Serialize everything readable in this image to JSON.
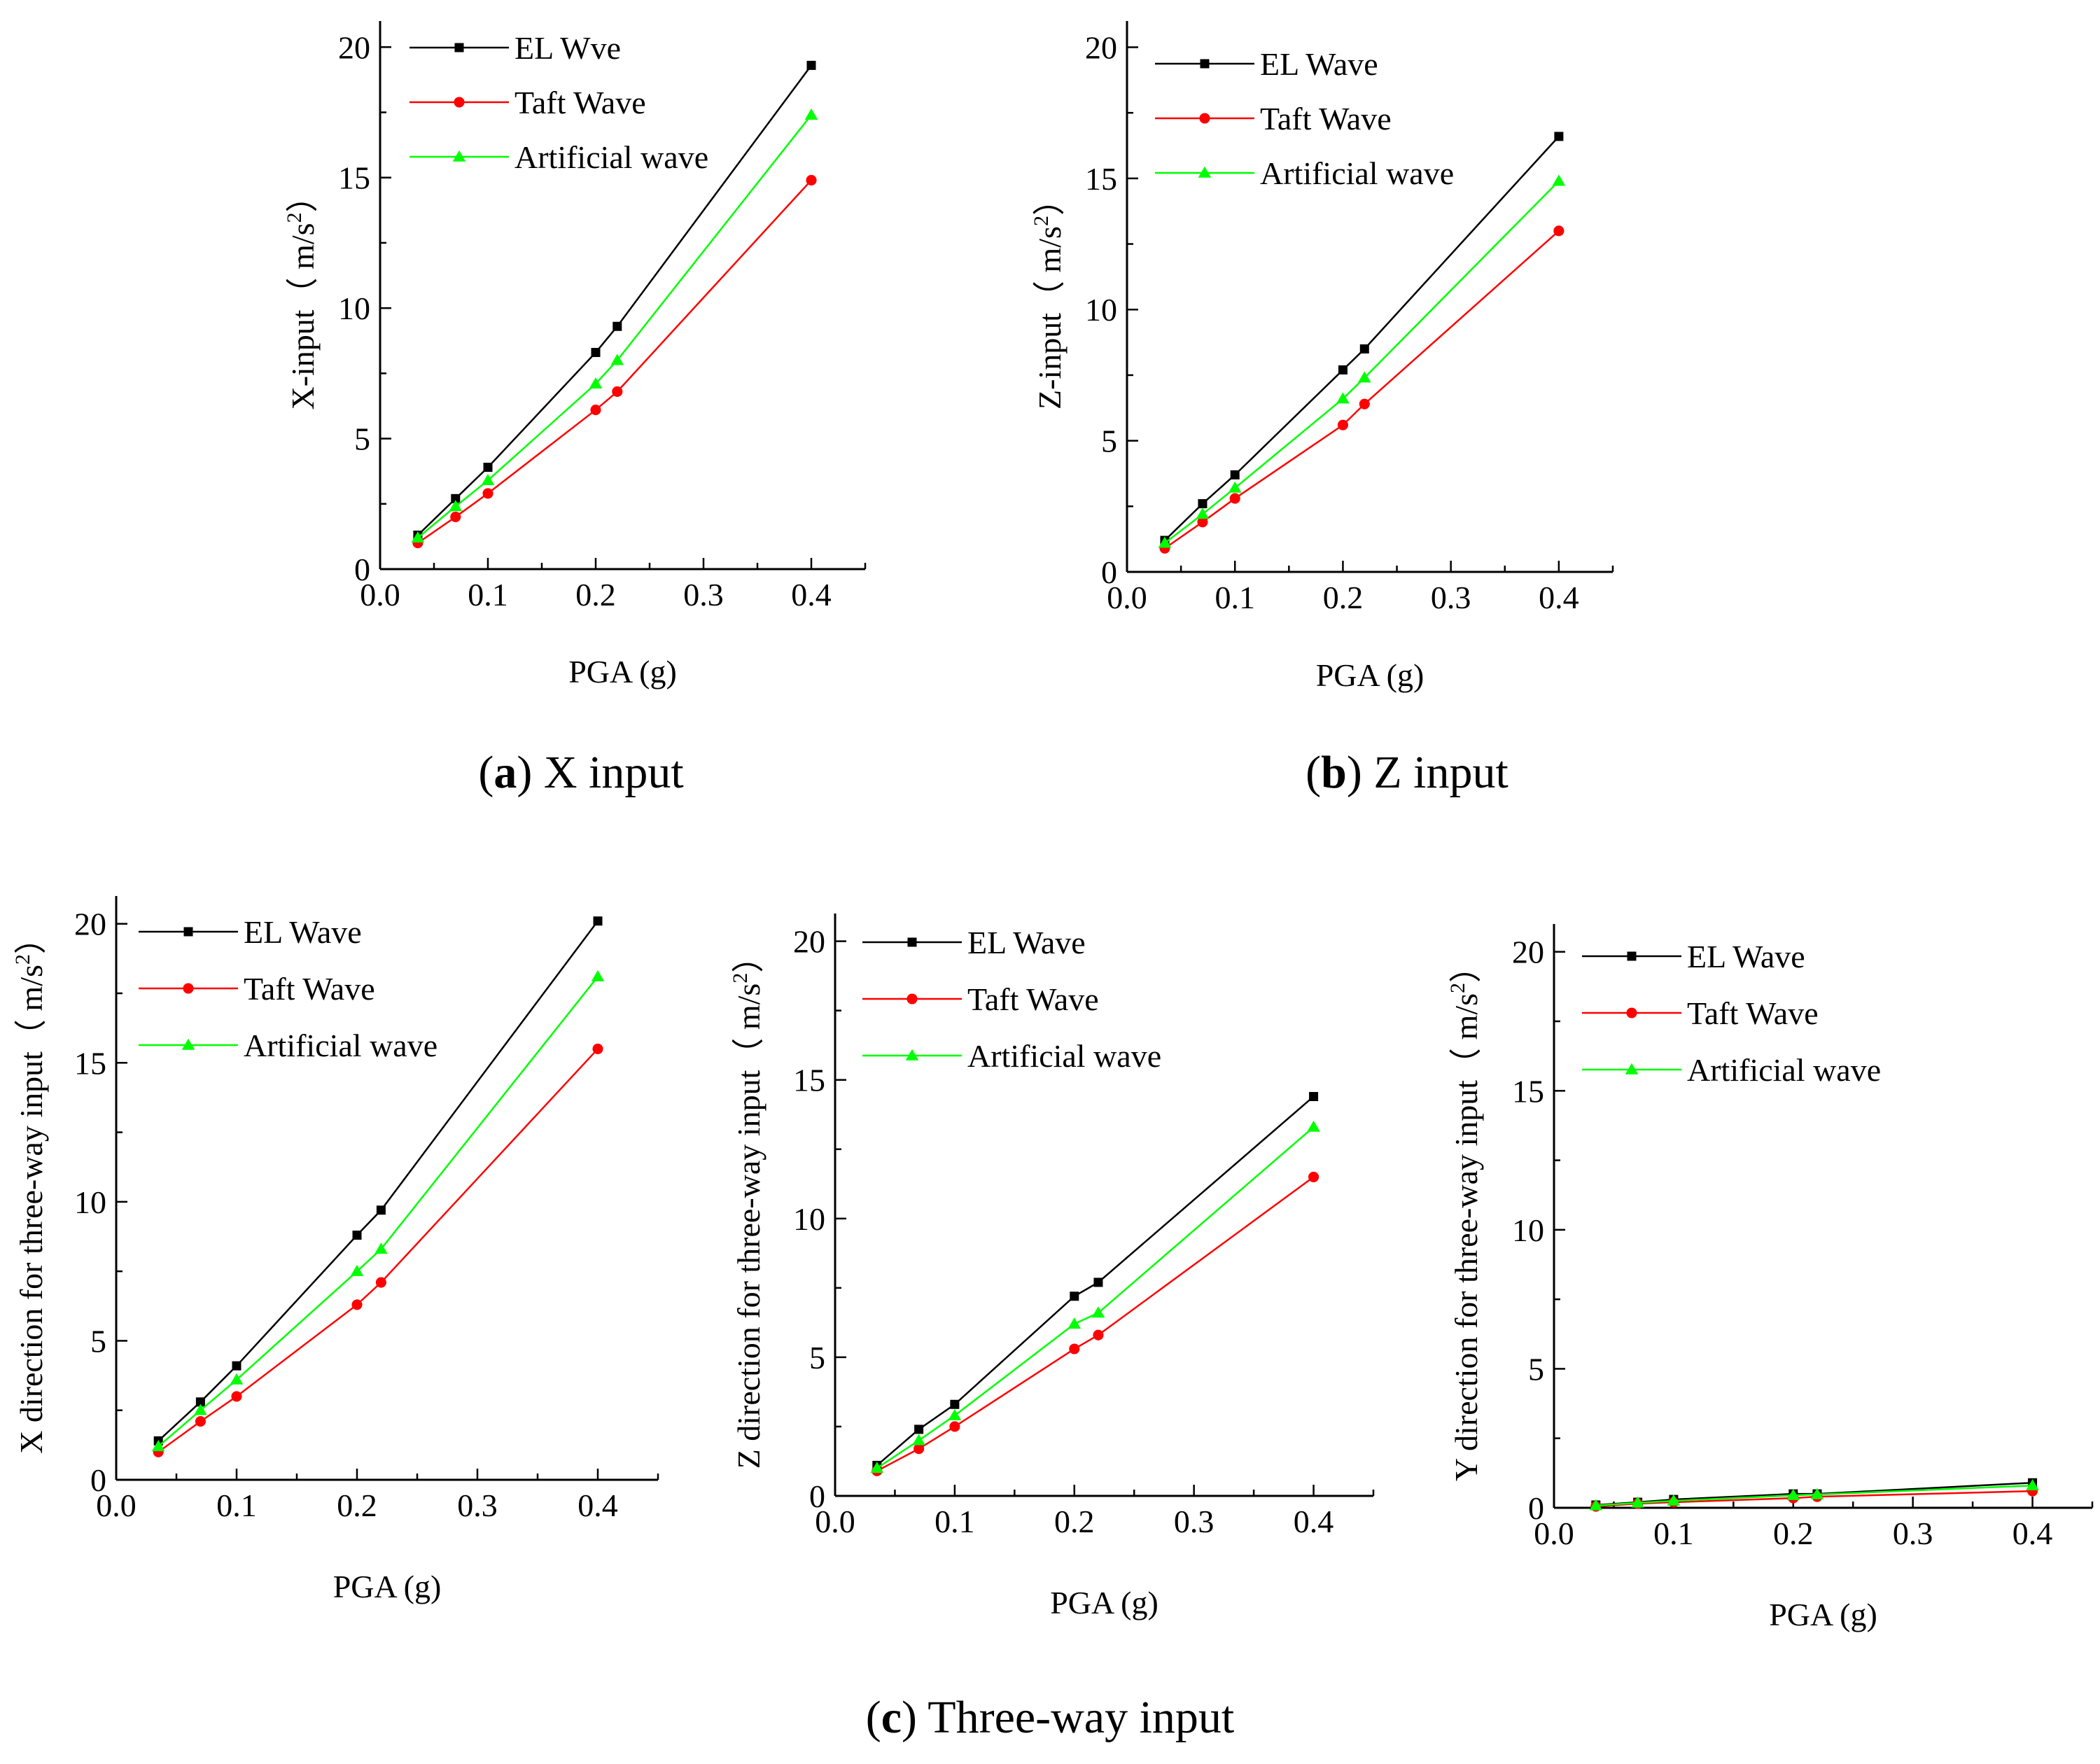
{
  "figure": {
    "captions": [
      {
        "letter": "a",
        "text": " X input"
      },
      {
        "letter": "b",
        "text": " Z input"
      },
      {
        "letter": "c",
        "text": " Three-way input"
      }
    ],
    "colors": {
      "el": "#000000",
      "taft": "#ff0000",
      "artificial": "#00ff00",
      "axis": "#000000"
    }
  },
  "chart_data": [
    {
      "id": "a",
      "type": "line",
      "title": "",
      "xlabel": "PGA (g)",
      "ylabel_prefix": "X-input（ m/s",
      "ylabel_sup": "2",
      "ylabel_suffix": "）",
      "xlim": [
        0.0,
        0.45
      ],
      "ylim": [
        0,
        21
      ],
      "xticks": [
        0.0,
        0.1,
        0.2,
        0.3,
        0.4
      ],
      "xtick_labels": [
        "0.0",
        "0.1",
        "0.2",
        "0.3",
        "0.4"
      ],
      "yticks": [
        0,
        5,
        10,
        15,
        20
      ],
      "ytick_labels": [
        "0",
        "5",
        "10",
        "15",
        "20"
      ],
      "legend_position": "top-left",
      "x": [
        0.035,
        0.07,
        0.1,
        0.2,
        0.22,
        0.4
      ],
      "series": [
        {
          "name": "EL Wve",
          "key": "el",
          "marker": "square",
          "values": [
            1.3,
            2.7,
            3.9,
            8.3,
            9.3,
            19.3
          ]
        },
        {
          "name": "Taft Wave",
          "key": "taft",
          "marker": "circle",
          "values": [
            1.0,
            2.0,
            2.9,
            6.1,
            6.8,
            14.9
          ]
        },
        {
          "name": "Artificial wave",
          "key": "artificial",
          "marker": "triangle",
          "values": [
            1.2,
            2.4,
            3.4,
            7.1,
            8.0,
            17.4
          ]
        }
      ]
    },
    {
      "id": "b",
      "type": "line",
      "title": "",
      "xlabel": "PGA (g)",
      "ylabel_prefix": "Z-input（ m/s",
      "ylabel_sup": "2",
      "ylabel_suffix": "）",
      "xlim": [
        0.0,
        0.45
      ],
      "ylim": [
        0,
        21
      ],
      "xticks": [
        0.0,
        0.1,
        0.2,
        0.3,
        0.4
      ],
      "xtick_labels": [
        "0.0",
        "0.1",
        "0.2",
        "0.3",
        "0.4"
      ],
      "yticks": [
        0,
        5,
        10,
        15,
        20
      ],
      "ytick_labels": [
        "0",
        "5",
        "10",
        "15",
        "20"
      ],
      "legend_position": "top-left",
      "x": [
        0.035,
        0.07,
        0.1,
        0.2,
        0.22,
        0.4
      ],
      "series": [
        {
          "name": "EL Wave",
          "key": "el",
          "marker": "square",
          "values": [
            1.2,
            2.6,
            3.7,
            7.7,
            8.5,
            16.6
          ]
        },
        {
          "name": "Taft Wave",
          "key": "taft",
          "marker": "circle",
          "values": [
            0.9,
            1.9,
            2.8,
            5.6,
            6.4,
            13.0
          ]
        },
        {
          "name": "Artificial wave",
          "key": "artificial",
          "marker": "triangle",
          "values": [
            1.1,
            2.2,
            3.2,
            6.6,
            7.4,
            14.9
          ]
        }
      ]
    },
    {
      "id": "c1",
      "type": "line",
      "title": "",
      "xlabel": "PGA (g)",
      "ylabel_prefix": "X direction for three-way input（ m/s",
      "ylabel_sup": "2",
      "ylabel_suffix": "）",
      "xlim": [
        0.0,
        0.45
      ],
      "ylim": [
        0,
        21
      ],
      "xticks": [
        0.0,
        0.1,
        0.2,
        0.3,
        0.4
      ],
      "xtick_labels": [
        "0.0",
        "0.1",
        "0.2",
        "0.3",
        "0.4"
      ],
      "yticks": [
        0,
        5,
        10,
        15,
        20
      ],
      "ytick_labels": [
        "0",
        "5",
        "10",
        "15",
        "20"
      ],
      "legend_position": "top-left",
      "x": [
        0.035,
        0.07,
        0.1,
        0.2,
        0.22,
        0.4
      ],
      "series": [
        {
          "name": "EL Wave",
          "key": "el",
          "marker": "square",
          "values": [
            1.4,
            2.8,
            4.1,
            8.8,
            9.7,
            20.1
          ]
        },
        {
          "name": "Taft Wave",
          "key": "taft",
          "marker": "circle",
          "values": [
            1.0,
            2.1,
            3.0,
            6.3,
            7.1,
            15.5
          ]
        },
        {
          "name": "Artificial wave",
          "key": "artificial",
          "marker": "triangle",
          "values": [
            1.2,
            2.5,
            3.6,
            7.5,
            8.3,
            18.1
          ]
        }
      ]
    },
    {
      "id": "c2",
      "type": "line",
      "title": "",
      "xlabel": "PGA (g)",
      "ylabel_prefix": "Z direction for three-way input（ m/s",
      "ylabel_sup": "2",
      "ylabel_suffix": "）",
      "xlim": [
        0.0,
        0.45
      ],
      "ylim": [
        0,
        21
      ],
      "xticks": [
        0.0,
        0.1,
        0.2,
        0.3,
        0.4
      ],
      "xtick_labels": [
        "0.0",
        "0.1",
        "0.2",
        "0.3",
        "0.4"
      ],
      "yticks": [
        0,
        5,
        10,
        15,
        20
      ],
      "ytick_labels": [
        "0",
        "5",
        "10",
        "15",
        "20"
      ],
      "legend_position": "top-left",
      "x": [
        0.035,
        0.07,
        0.1,
        0.2,
        0.22,
        0.4
      ],
      "series": [
        {
          "name": "EL Wave",
          "key": "el",
          "marker": "square",
          "values": [
            1.1,
            2.4,
            3.3,
            7.2,
            7.7,
            14.4
          ]
        },
        {
          "name": "Taft Wave",
          "key": "taft",
          "marker": "circle",
          "values": [
            0.9,
            1.7,
            2.5,
            5.3,
            5.8,
            11.5
          ]
        },
        {
          "name": "Artificial wave",
          "key": "artificial",
          "marker": "triangle",
          "values": [
            1.0,
            2.0,
            2.9,
            6.2,
            6.6,
            13.3
          ]
        }
      ]
    },
    {
      "id": "c3",
      "type": "line",
      "title": "",
      "xlabel": "PGA (g)",
      "ylabel_prefix": "Y direction for three-way input（ m/s",
      "ylabel_sup": "2",
      "ylabel_suffix": "）",
      "xlim": [
        0.0,
        0.45
      ],
      "ylim": [
        0,
        21
      ],
      "xticks": [
        0.0,
        0.1,
        0.2,
        0.3,
        0.4
      ],
      "xtick_labels": [
        "0.0",
        "0.1",
        "0.2",
        "0.3",
        "0.4"
      ],
      "yticks": [
        0,
        5,
        10,
        15,
        20
      ],
      "ytick_labels": [
        "0",
        "5",
        "10",
        "15",
        "20"
      ],
      "legend_position": "top-left",
      "x": [
        0.035,
        0.07,
        0.1,
        0.2,
        0.22,
        0.4
      ],
      "series": [
        {
          "name": "EL Wave",
          "key": "el",
          "marker": "square",
          "values": [
            0.1,
            0.2,
            0.3,
            0.5,
            0.5,
            0.9
          ]
        },
        {
          "name": "Taft Wave",
          "key": "taft",
          "marker": "circle",
          "values": [
            0.05,
            0.15,
            0.2,
            0.35,
            0.4,
            0.6
          ]
        },
        {
          "name": "Artificial wave",
          "key": "artificial",
          "marker": "triangle",
          "values": [
            0.08,
            0.18,
            0.25,
            0.45,
            0.48,
            0.8
          ]
        }
      ]
    }
  ]
}
